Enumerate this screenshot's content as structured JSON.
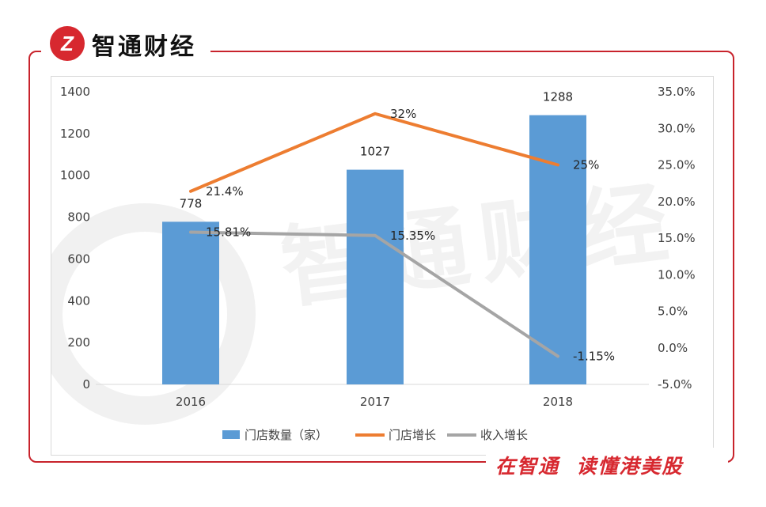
{
  "header": {
    "brand_name": "智通财经",
    "logo_letter": "Z"
  },
  "footer": {
    "slogan": "在智通  读懂港美股"
  },
  "watermark": {
    "text": "智通财经"
  },
  "colors": {
    "frame": "#c8232c",
    "bar": "#5b9bd5",
    "store_growth": "#ed7d31",
    "revenue_growth": "#a5a5a5"
  },
  "chart_data": {
    "type": "bar",
    "categories": [
      "2016",
      "2017",
      "2018"
    ],
    "series": [
      {
        "name": "门店数量（家）",
        "type": "bar",
        "axis": "left",
        "values": [
          778,
          1027,
          1288
        ],
        "labels": [
          "778",
          "1027",
          "1288"
        ]
      },
      {
        "name": "门店增长",
        "type": "line",
        "axis": "right",
        "values": [
          21.4,
          32,
          25
        ],
        "labels": [
          "21.4%",
          "32%",
          "25%"
        ]
      },
      {
        "name": "收入增长",
        "type": "line",
        "axis": "right",
        "values": [
          15.81,
          15.35,
          -1.15
        ],
        "labels": [
          "15.81%",
          "15.35%",
          "-1.15%"
        ]
      }
    ],
    "y_left": {
      "min": 0,
      "max": 1400,
      "ticks": [
        "0",
        "200",
        "400",
        "600",
        "800",
        "1000",
        "1200",
        "1400"
      ]
    },
    "y_right": {
      "min": -5,
      "max": 35,
      "ticks": [
        "-5.0%",
        "0.0%",
        "5.0%",
        "10.0%",
        "15.0%",
        "20.0%",
        "25.0%",
        "30.0%",
        "35.0%"
      ]
    },
    "grid": false,
    "legend_position": "bottom"
  }
}
